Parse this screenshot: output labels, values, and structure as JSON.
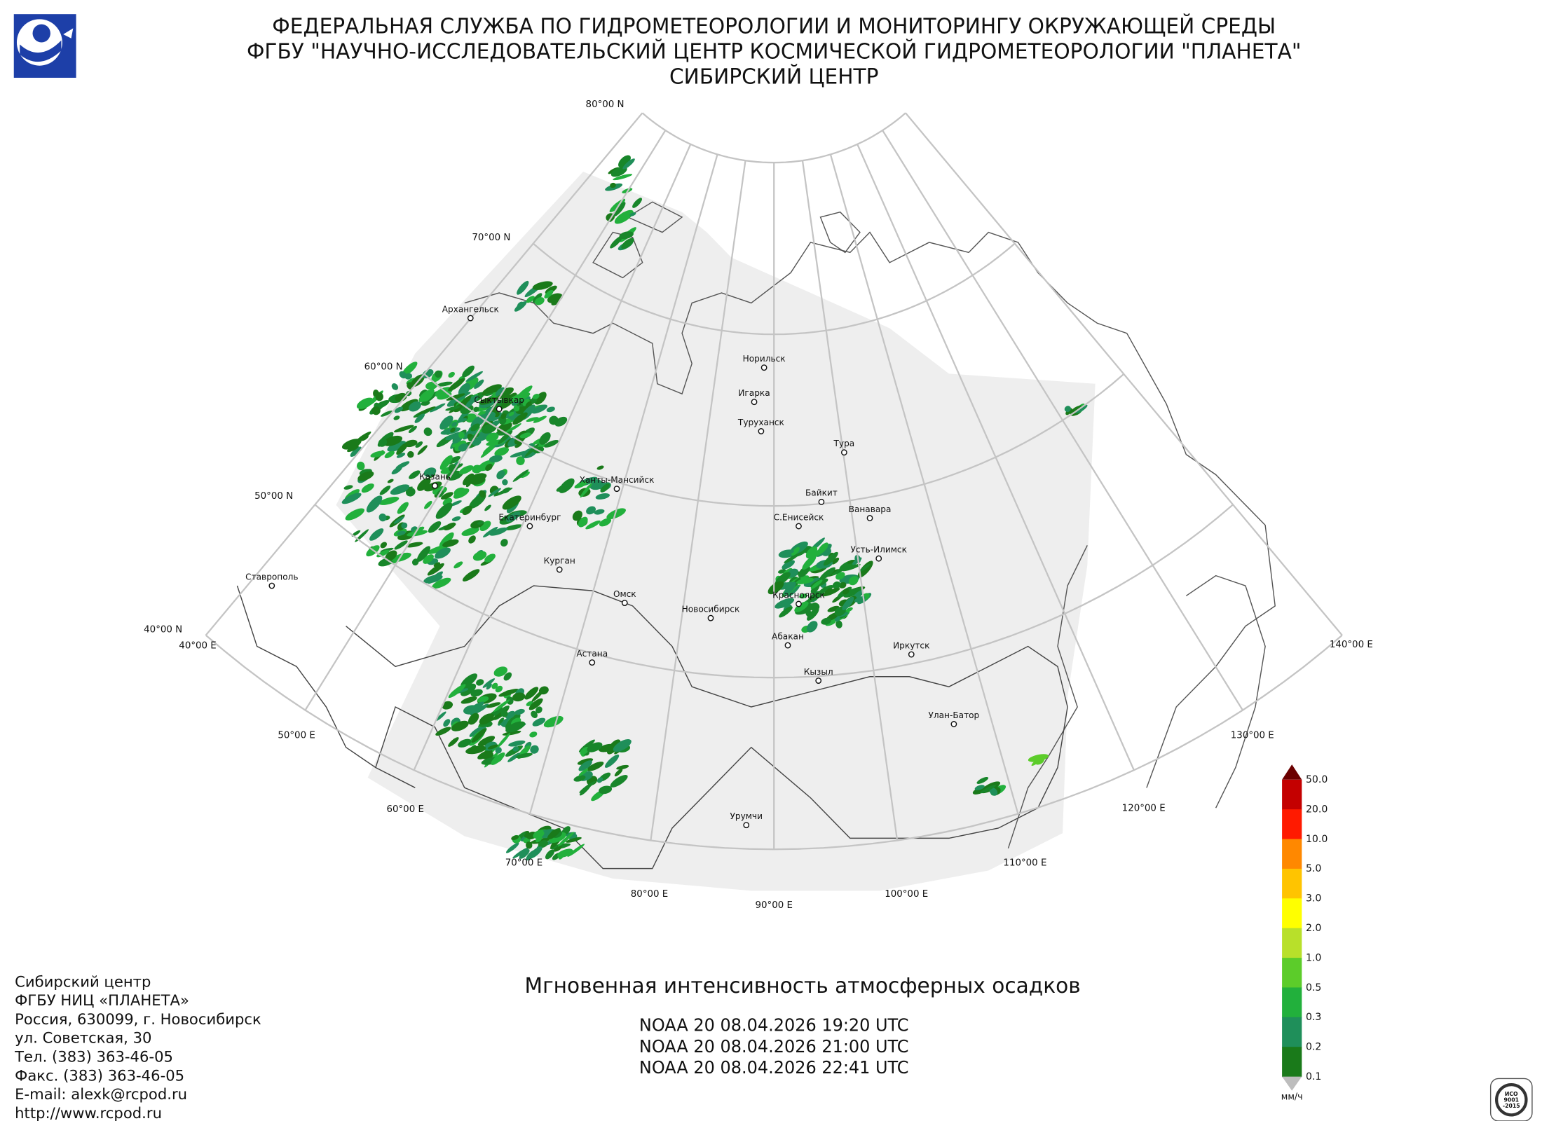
{
  "header": {
    "lines": [
      "ФЕДЕРАЛЬНАЯ СЛУЖБА ПО ГИДРОМЕТЕОРОЛОГИИ И МОНИТОРИНГУ ОКРУЖАЮЩЕЙ СРЕДЫ",
      "ФГБУ \"НАУЧНО-ИССЛЕДОВАТЕЛЬСКИЙ ЦЕНТР КОСМИЧЕСКОЙ ГИДРОМЕТЕОРОЛОГИИ \"ПЛАНЕТА\"",
      "СИБИРСКИЙ ЦЕНТР"
    ]
  },
  "map": {
    "latitude_labels": [
      "80°00 N",
      "70°00 N",
      "60°00 N",
      "50°00 N",
      "40°00 N"
    ],
    "longitude_labels": [
      "40°00 E",
      "50°00 E",
      "60°00 E",
      "70°00 E",
      "80°00 E",
      "90°00 E",
      "100°00 E",
      "110°00 E",
      "120°00 E",
      "130°00 E",
      "140°00 E"
    ],
    "cities": [
      "Архангельск",
      "Сыктывкар",
      "Казань",
      "Екатеринбург",
      "Ханты-Мансийск",
      "Курган",
      "Ставрополь",
      "Омск",
      "Астана",
      "Новосибирск",
      "Норильск",
      "Игарка",
      "Туруханск",
      "Тура",
      "Байкит",
      "С.Енисейск",
      "Ванавара",
      "Усть-Илимск",
      "Красноярск",
      "Абакан",
      "Иркутск",
      "Кызыл",
      "Улан-Батор",
      "Урумчи"
    ]
  },
  "legend": {
    "labels": [
      "50.0",
      "20.0",
      "10.0",
      "5.0",
      "3.0",
      "2.0",
      "1.0",
      "0.5",
      "0.3",
      "0.2",
      "0.1"
    ],
    "colors": [
      "#6b0000",
      "#c40000",
      "#ff1a00",
      "#ff8800",
      "#ffc400",
      "#ffff00",
      "#b8e02a",
      "#5ccc2a",
      "#22b03c",
      "#1f8f5a",
      "#1a7a1a",
      "#bdbdbd"
    ],
    "unit": "мм/ч"
  },
  "product": {
    "title": "Мгновенная интенсивность атмосферных осадков",
    "passes": [
      "NOAA 20 08.04.2026  19:20 UTC",
      "NOAA 20 08.04.2026  21:00 UTC",
      "NOAA 20 08.04.2026  22:41 UTC"
    ]
  },
  "contacts": {
    "lines": [
      "Сибирский центр",
      "ФГБУ НИЦ «ПЛАНЕТА»",
      "Россия, 630099, г. Новосибирск",
      "ул. Советская, 30",
      "Тел. (383) 363-46-05",
      "Факс. (383) 363-46-05",
      "E-mail: alexk@rcpod.ru",
      "http://www.rcpod.ru"
    ]
  },
  "certificate": {
    "lines": [
      "ИСО",
      "9001",
      "-2015"
    ]
  }
}
